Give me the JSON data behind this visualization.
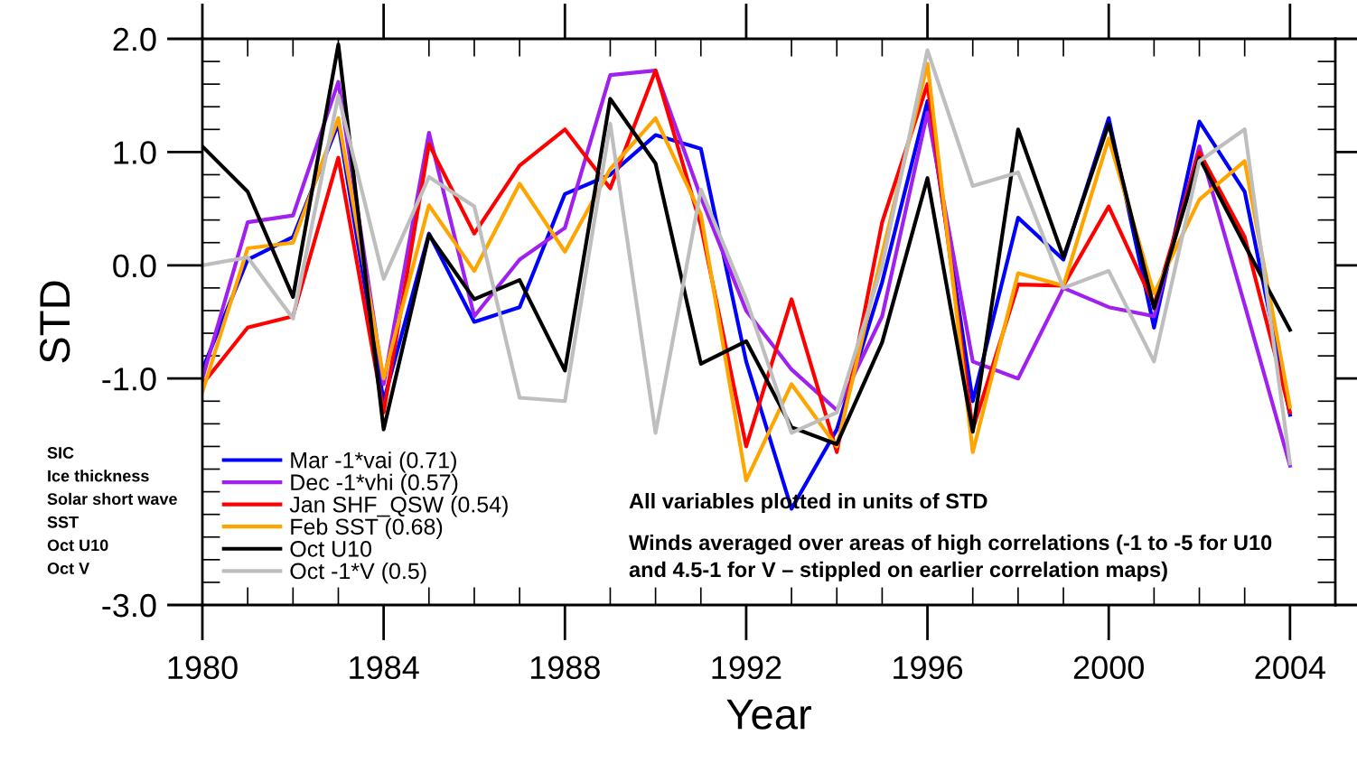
{
  "chart_data": {
    "type": "line",
    "xlabel": "Year",
    "ylabel": "STD",
    "x": [
      1980,
      1981,
      1982,
      1983,
      1984,
      1985,
      1986,
      1987,
      1988,
      1989,
      1990,
      1991,
      1992,
      1993,
      1994,
      1995,
      1996,
      1997,
      1998,
      1999,
      2000,
      2001,
      2002,
      2003,
      2004
    ],
    "xlim": [
      1980,
      2005
    ],
    "xticks": [
      1980,
      1984,
      1988,
      1992,
      1996,
      2000,
      2004
    ],
    "ylim": [
      -3.0,
      2.0
    ],
    "yticks": [
      {
        "value": 2,
        "label": "2.0"
      },
      {
        "value": 1,
        "label": "1.0"
      },
      {
        "value": 0,
        "label": "0.0"
      },
      {
        "value": -1,
        "label": "-1.0"
      },
      {
        "value": -3,
        "label": "-3.0"
      }
    ],
    "grid": false,
    "legend": "bottom left",
    "marker": "none",
    "line_style": "solid",
    "series": [
      {
        "name": "Mar -1*vai (0.71)",
        "color": "#0000ff",
        "values": [
          -0.92,
          0.05,
          0.25,
          1.25,
          -1.2,
          0.28,
          -0.5,
          -0.37,
          0.63,
          0.8,
          1.15,
          1.03,
          -0.85,
          -2.15,
          -1.45,
          -0.15,
          1.45,
          -1.2,
          0.42,
          0.05,
          1.3,
          -0.55,
          1.27,
          0.65,
          -1.32
        ]
      },
      {
        "name": "Dec -1*vhi (0.57)",
        "color": "#a020f0",
        "values": [
          -1.0,
          0.38,
          0.44,
          1.62,
          -1.05,
          1.17,
          -0.45,
          0.05,
          0.33,
          1.68,
          1.72,
          0.6,
          -0.4,
          -0.92,
          -1.28,
          -0.45,
          1.35,
          -0.85,
          -1.0,
          -0.2,
          -0.37,
          -0.45,
          1.05,
          -0.35,
          -1.77
        ]
      },
      {
        "name": "Jan SHF_QSW (0.54)",
        "color": "#ff0000",
        "values": [
          -1.05,
          -0.55,
          -0.45,
          0.95,
          -1.3,
          1.07,
          0.28,
          0.88,
          1.2,
          0.68,
          1.72,
          0.35,
          -1.6,
          -0.3,
          -1.65,
          0.38,
          1.6,
          -1.45,
          -0.17,
          -0.18,
          0.52,
          -0.35,
          1.0,
          0.25,
          -1.3
        ]
      },
      {
        "name": "Feb SST (0.68)",
        "color": "#ffa500",
        "values": [
          -1.12,
          0.15,
          0.2,
          1.3,
          -1.0,
          0.53,
          -0.05,
          0.72,
          0.12,
          0.85,
          1.3,
          0.45,
          -1.9,
          -1.05,
          -1.6,
          0.1,
          1.78,
          -1.65,
          -0.07,
          -0.18,
          1.12,
          -0.25,
          0.58,
          0.92,
          -1.25
        ]
      },
      {
        "name": "Oct U10",
        "color": "#000000",
        "values": [
          1.05,
          0.65,
          -0.28,
          1.95,
          -1.45,
          0.27,
          -0.3,
          -0.13,
          -0.93,
          1.47,
          0.9,
          -0.87,
          -0.67,
          -1.43,
          -1.58,
          -0.68,
          0.77,
          -1.47,
          1.2,
          0.07,
          1.25,
          -0.38,
          0.95,
          0.18,
          -0.57
        ]
      },
      {
        "name": "Oct -1*V (0.5)",
        "color": "#bebebe",
        "values": [
          0.0,
          0.07,
          -0.47,
          1.5,
          -0.12,
          0.78,
          0.52,
          -1.17,
          -1.2,
          1.25,
          -1.48,
          0.67,
          -0.3,
          -1.48,
          -1.3,
          0.0,
          1.9,
          0.7,
          0.82,
          -0.2,
          -0.05,
          -0.85,
          0.92,
          1.2,
          -1.75
        ]
      }
    ],
    "annotations": [
      "SIC",
      "Ice thickness",
      "Solar short wave",
      "SST",
      "Oct U10",
      "Oct V",
      "All variables plotted in units of STD",
      "Winds averaged over areas of high correlations (-1 to -5 for U10\nand 4.5-1 for V – stippled on earlier correlation maps)"
    ]
  }
}
